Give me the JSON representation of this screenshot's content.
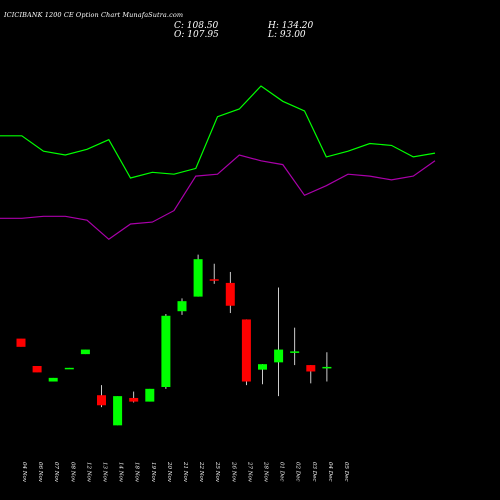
{
  "header": {
    "title": "ICICIBANK 1200 CE Option Chart MunafaSutra.com",
    "close_label": "C:",
    "close_value": "108.50",
    "open_label": "O:",
    "open_value": "107.95",
    "high_label": "H:",
    "high_value": "134.20",
    "low_label": "L:",
    "low_value": "93.00"
  },
  "colors": {
    "background": "#000000",
    "bull": "#00ff00",
    "bear": "#ff0000",
    "upper_line": "#00ff00",
    "lower_line": "#aa00aa",
    "neutral_wick": "#ffffff"
  },
  "chart_data": [
    {
      "type": "line",
      "title": "",
      "x": [
        "04 Nov",
        "06 Nov",
        "07 Nov",
        "08 Nov",
        "12 Nov",
        "13 Nov",
        "14 Nov",
        "18 Nov",
        "19 Nov",
        "20 Nov",
        "21 Nov",
        "22 Nov",
        "25 Nov",
        "26 Nov",
        "27 Nov",
        "28 Nov",
        "01 Dec",
        "02 Dec",
        "03 Dec",
        "04 Dec",
        "05 Dec"
      ],
      "series": [
        {
          "values": [
            140,
            140,
            132,
            130,
            133,
            138,
            118,
            121,
            120,
            123,
            150,
            154,
            166,
            158,
            153,
            129,
            132,
            136,
            135,
            129,
            131
          ]
        },
        {
          "values": [
            97,
            97,
            98,
            98,
            96,
            86,
            94,
            95,
            101,
            119,
            120,
            130,
            127,
            125,
            109,
            114,
            120,
            119,
            117,
            119,
            127
          ]
        }
      ],
      "ylim": [
        70,
        190
      ],
      "grid": false
    },
    {
      "type": "candlestick",
      "title": "",
      "x": [
        "04 Nov",
        "06 Nov",
        "07 Nov",
        "08 Nov",
        "12 Nov",
        "13 Nov",
        "14 Nov",
        "18 Nov",
        "19 Nov",
        "20 Nov",
        "21 Nov",
        "22 Nov",
        "25 Nov",
        "26 Nov",
        "27 Nov",
        "28 Nov",
        "01 Dec",
        "02 Dec",
        "03 Dec",
        "04 Dec"
      ],
      "candles": [
        {
          "open": 122,
          "high": 122,
          "low": 113,
          "close": 113
        },
        {
          "open": 92,
          "high": 92,
          "low": 85,
          "close": 85
        },
        {
          "open": 75,
          "high": 79,
          "low": 75,
          "close": 79
        },
        {
          "open": 89,
          "high": 90,
          "low": 89,
          "close": 90
        },
        {
          "open": 105,
          "high": 110,
          "low": 105,
          "close": 110
        },
        {
          "open": 60,
          "high": 71,
          "low": 47,
          "close": 49
        },
        {
          "open": 27,
          "high": 59,
          "low": 27,
          "close": 59
        },
        {
          "open": 57,
          "high": 64,
          "low": 52,
          "close": 53
        },
        {
          "open": 53,
          "high": 67,
          "low": 53,
          "close": 67
        },
        {
          "open": 69,
          "high": 149,
          "low": 67,
          "close": 147
        },
        {
          "open": 152,
          "high": 166,
          "low": 148,
          "close": 163
        },
        {
          "open": 168,
          "high": 214,
          "low": 168,
          "close": 209
        },
        {
          "open": 187,
          "high": 204,
          "low": 182,
          "close": 186
        },
        {
          "open": 183,
          "high": 195,
          "low": 150,
          "close": 158
        },
        {
          "open": 143,
          "high": 143,
          "low": 71,
          "close": 75
        },
        {
          "open": 88,
          "high": 94,
          "low": 72,
          "close": 94
        },
        {
          "open": 96,
          "high": 178,
          "low": 59,
          "close": 110
        },
        {
          "open": 108,
          "high": 134,
          "low": 93,
          "close": 108
        },
        {
          "open": 93,
          "high": 93,
          "low": 73,
          "close": 86
        },
        {
          "open": 90,
          "high": 107,
          "low": 75,
          "close": 91
        }
      ],
      "ylim": [
        0,
        230
      ],
      "grid": false
    }
  ]
}
